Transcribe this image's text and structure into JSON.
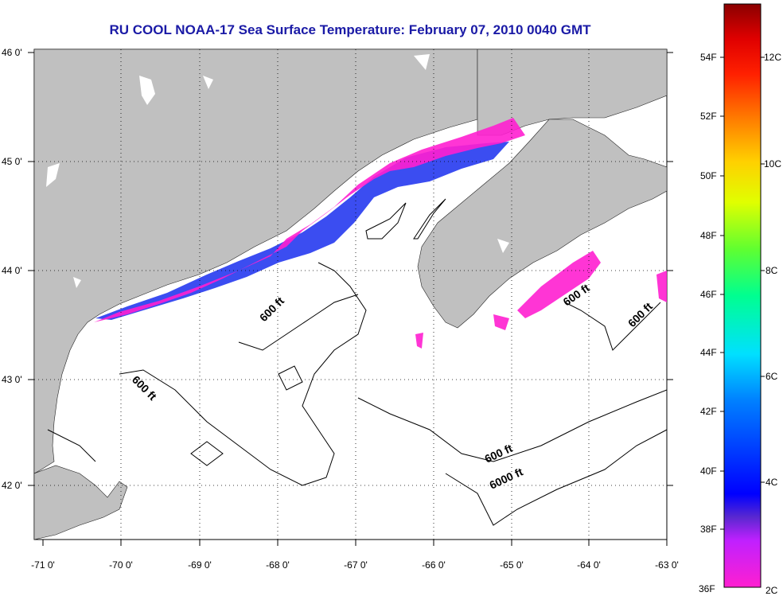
{
  "title": "RU COOL  NOAA-17  Sea Surface Temperature:  February 07, 2010 0040 GMT",
  "colors": {
    "land": "#c0c0c0",
    "water": "#ffffff",
    "title": "#1a1aa6"
  },
  "lat_labels": [
    "46 0'",
    "45 0'",
    "44 0'",
    "43 0'",
    "42 0'"
  ],
  "lon_labels": [
    "-71 0'",
    "-70 0'",
    "-69 0'",
    "-68 0'",
    "-67 0'",
    "-66 0'",
    "-65 0'",
    "-64 0'",
    "-63 0'"
  ],
  "depth_labels": [
    "600 ft",
    "600 ft",
    "600 ft",
    "600 ft",
    "6000 ft"
  ],
  "fahrenheit_labels": [
    "54F",
    "52F",
    "50F",
    "48F",
    "46F",
    "44F",
    "42F",
    "40F",
    "38F",
    "36F"
  ],
  "celsius_labels": [
    "12C",
    "10C",
    "8C",
    "6C",
    "4C",
    "2C"
  ]
}
